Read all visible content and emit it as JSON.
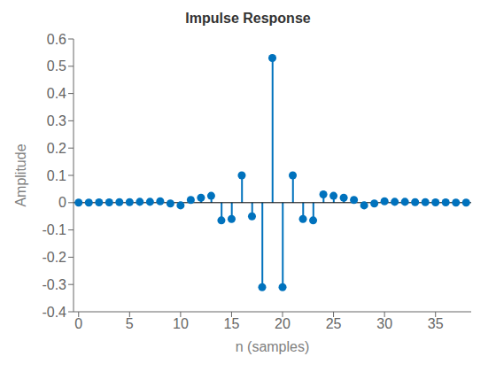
{
  "chart_data": {
    "type": "stem",
    "title": "Impulse Response",
    "xlabel": "n (samples)",
    "ylabel": "Amplitude",
    "x": [
      0,
      1,
      2,
      3,
      4,
      5,
      6,
      7,
      8,
      9,
      10,
      11,
      12,
      13,
      14,
      15,
      16,
      17,
      18,
      19,
      20,
      21,
      22,
      23,
      24,
      25,
      26,
      27,
      28,
      29,
      30,
      31,
      32,
      33,
      34,
      35,
      36,
      37,
      38
    ],
    "values": [
      0.0,
      0.0,
      0.001,
      0.001,
      0.002,
      0.002,
      0.003,
      0.003,
      0.005,
      -0.003,
      -0.01,
      0.01,
      0.018,
      0.025,
      -0.065,
      -0.06,
      0.1,
      -0.05,
      -0.31,
      0.53,
      -0.31,
      0.1,
      -0.06,
      -0.065,
      0.03,
      0.025,
      0.018,
      0.01,
      -0.01,
      -0.003,
      0.005,
      0.003,
      0.003,
      0.002,
      0.002,
      0.001,
      0.001,
      0.0,
      0.0
    ],
    "color": "#0072BD",
    "marker": "circle",
    "xlim": [
      -0.5,
      38.5
    ],
    "xticks": [
      0,
      5,
      10,
      15,
      20,
      25,
      30,
      35
    ],
    "ylim": [
      -0.4,
      0.6
    ],
    "yticks": [
      -0.4,
      -0.3,
      -0.2,
      -0.1,
      0,
      0.1,
      0.2,
      0.3,
      0.4,
      0.5,
      0.6
    ],
    "grid": false
  }
}
